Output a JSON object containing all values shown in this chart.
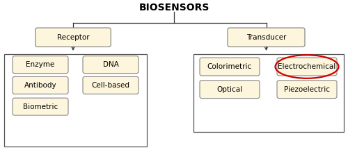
{
  "title": "BIOSENSORS",
  "title_fontsize": 10,
  "title_fontweight": "bold",
  "bg_color": "#ffffff",
  "box_fill": "#fdf5dc",
  "box_edge": "#888888",
  "font_size": 7.5,
  "arrow_color": "#333333",
  "red_circle_color": "#cc0000",
  "receptor_label": "Receptor",
  "transducer_label": "Transducer",
  "xlim": [
    0,
    10
  ],
  "ylim": [
    0,
    4.5
  ],
  "figsize": [
    5.0,
    2.16
  ],
  "dpi": 100
}
